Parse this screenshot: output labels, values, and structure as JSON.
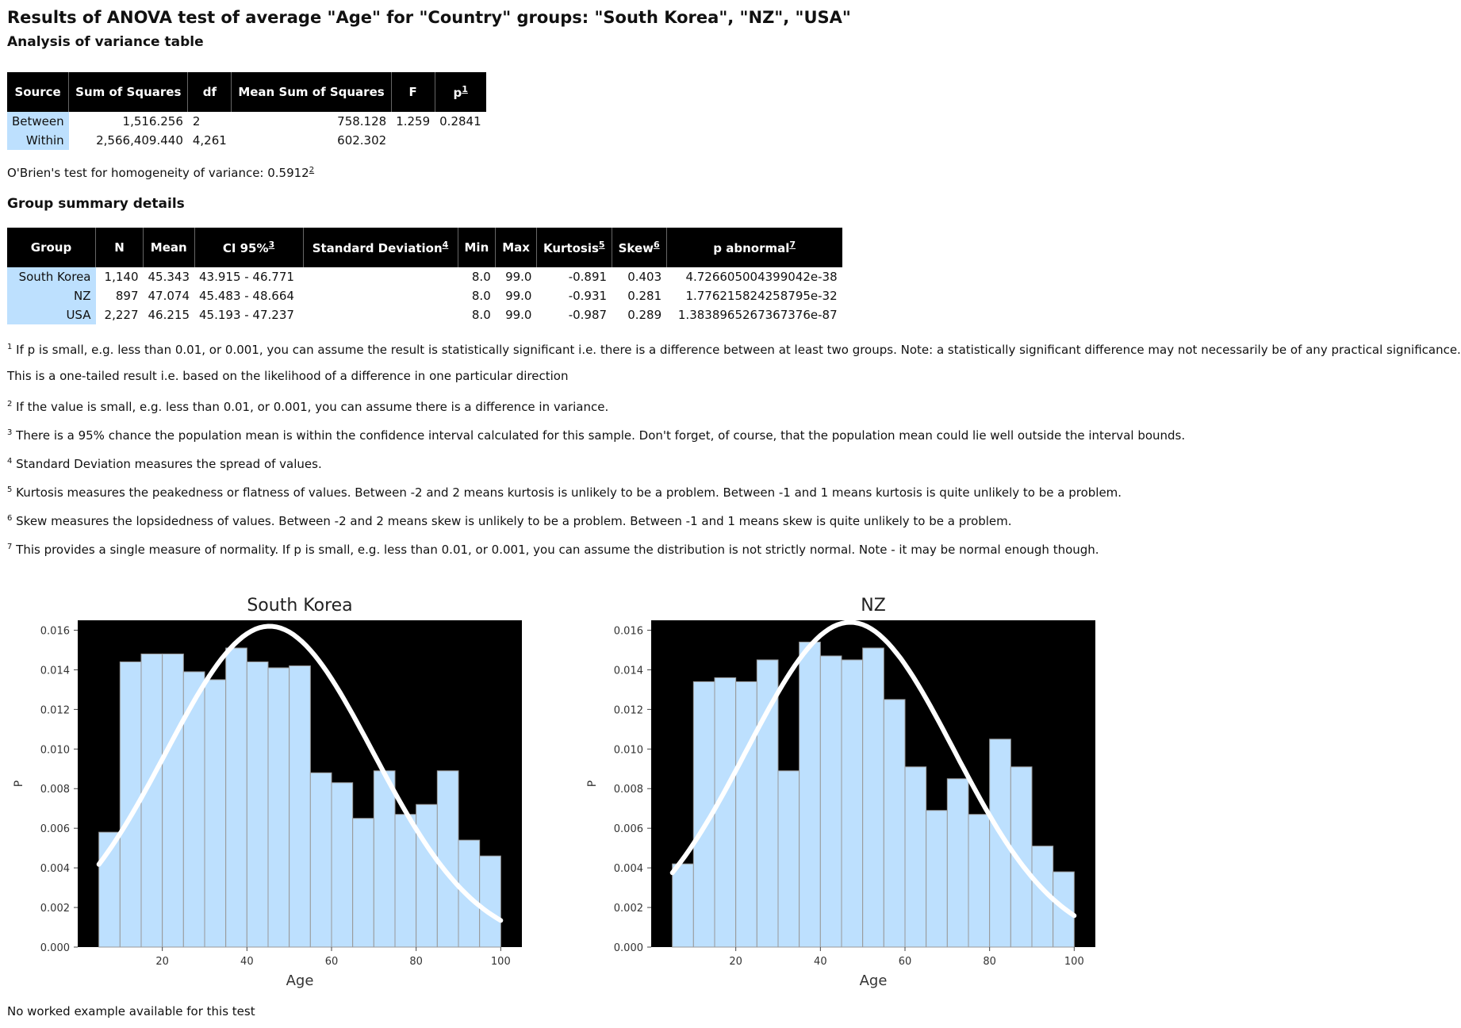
{
  "title": "Results of ANOVA test of average \"Age\" for \"Country\" groups: \"South Korea\", \"NZ\", \"USA\"",
  "anova": {
    "heading": "Analysis of variance table",
    "headers": [
      "Source",
      "Sum of Squares",
      "df",
      "Mean Sum of Squares",
      "F",
      "p"
    ],
    "p_footnote": "1",
    "rows": [
      {
        "source": "Between",
        "ss": "1,516.256",
        "df": "2",
        "ms": "758.128",
        "f": "1.259",
        "p": "0.2841"
      },
      {
        "source": "Within",
        "ss": "2,566,409.440",
        "df": "4,261",
        "ms": "602.302",
        "f": "",
        "p": ""
      }
    ]
  },
  "obrien": {
    "label": "O'Brien's test for homogeneity of variance: 0.5912",
    "footnote": "2"
  },
  "groups": {
    "heading": "Group summary details",
    "headers": {
      "group": "Group",
      "n": "N",
      "mean": "Mean",
      "ci": "CI 95%",
      "sd": "Standard Deviation",
      "min": "Min",
      "max": "Max",
      "kurtosis": "Kurtosis",
      "skew": "Skew",
      "pabn": "p abnormal"
    },
    "header_footnotes": {
      "ci": "3",
      "sd": "4",
      "kurtosis": "5",
      "skew": "6",
      "pabn": "7"
    },
    "rows": [
      {
        "group": "South Korea",
        "n": "1,140",
        "mean": "45.343",
        "ci": "43.915 - 46.771",
        "sd": "",
        "min": "8.0",
        "max": "99.0",
        "kurtosis": "-0.891",
        "skew": "0.403",
        "pabn": "4.726605004399042e-38"
      },
      {
        "group": "NZ",
        "n": "897",
        "mean": "47.074",
        "ci": "45.483 - 48.664",
        "sd": "",
        "min": "8.0",
        "max": "99.0",
        "kurtosis": "-0.931",
        "skew": "0.281",
        "pabn": "1.776215824258795e-32"
      },
      {
        "group": "USA",
        "n": "2,227",
        "mean": "46.215",
        "ci": "45.193 - 47.237",
        "sd": "",
        "min": "8.0",
        "max": "99.0",
        "kurtosis": "-0.987",
        "skew": "0.289",
        "pabn": "1.3838965267367376e-87"
      }
    ]
  },
  "notes": [
    {
      "num": "1",
      "text": "If p is small, e.g. less than 0.01, or 0.001, you can assume the result is statistically significant i.e. there is a difference between at least two groups. Note: a statistically significant difference may not necessarily be of any practical significance."
    },
    {
      "num": "",
      "text": "This is a one-tailed result i.e. based on the likelihood of a difference in one particular direction"
    },
    {
      "num": "2",
      "text": "If the value is small, e.g. less than 0.01, or 0.001, you can assume there is a difference in variance."
    },
    {
      "num": "3",
      "text": "There is a 95% chance the population mean is within the confidence interval calculated for this sample. Don't forget, of course, that the population mean could lie well outside the interval bounds."
    },
    {
      "num": "4",
      "text": "Standard Deviation measures the spread of values."
    },
    {
      "num": "5",
      "text": "Kurtosis measures the peakedness or flatness of values. Between -2 and 2 means kurtosis is unlikely to be a problem. Between -1 and 1 means kurtosis is quite unlikely to be a problem."
    },
    {
      "num": "6",
      "text": "Skew measures the lopsidedness of values. Between -2 and 2 means skew is unlikely to be a problem. Between -1 and 1 means skew is quite unlikely to be a problem."
    },
    {
      "num": "7",
      "text": "This provides a single measure of normality. If p is small, e.g. less than 0.01, or 0.001, you can assume the distribution is not strictly normal. Note - it may be normal enough though."
    }
  ],
  "chart_data": [
    {
      "type": "bar",
      "title": "South Korea",
      "xlabel": "Age",
      "ylabel": "P",
      "xlim": [
        0,
        105
      ],
      "ylim": [
        0,
        0.0165
      ],
      "xticks": [
        20,
        40,
        60,
        80,
        100
      ],
      "yticks": [
        "0.000",
        "0.002",
        "0.004",
        "0.006",
        "0.008",
        "0.010",
        "0.012",
        "0.014",
        "0.016"
      ],
      "bin_edges": [
        5,
        10,
        15,
        20,
        25,
        30,
        35,
        40,
        45,
        50,
        55,
        60,
        65,
        70,
        75,
        80,
        85,
        90,
        95,
        100
      ],
      "values": [
        0.0058,
        0.0144,
        0.0148,
        0.0148,
        0.0139,
        0.0135,
        0.0151,
        0.0144,
        0.0141,
        0.0142,
        0.0088,
        0.0083,
        0.0065,
        0.0089,
        0.0067,
        0.0072,
        0.0089,
        0.0054,
        0.0046
      ],
      "normal_curve": {
        "mean": 45.343,
        "peak": 0.0162,
        "x": [
          5,
          100
        ]
      },
      "colors": {
        "bar": "#bde0fe",
        "edge": "#999999",
        "bg": "#000000",
        "curve": "#ffffff"
      }
    },
    {
      "type": "bar",
      "title": "NZ",
      "xlabel": "Age",
      "ylabel": "P",
      "xlim": [
        0,
        105
      ],
      "ylim": [
        0,
        0.0165
      ],
      "xticks": [
        20,
        40,
        60,
        80,
        100
      ],
      "yticks": [
        "0.000",
        "0.002",
        "0.004",
        "0.006",
        "0.008",
        "0.010",
        "0.012",
        "0.014",
        "0.016"
      ],
      "bin_edges": [
        5,
        10,
        15,
        20,
        25,
        30,
        35,
        40,
        45,
        50,
        55,
        60,
        65,
        70,
        75,
        80,
        85,
        90,
        95,
        100
      ],
      "values": [
        0.0042,
        0.0134,
        0.0136,
        0.0134,
        0.0145,
        0.0089,
        0.0154,
        0.0147,
        0.0145,
        0.0151,
        0.0125,
        0.0091,
        0.0069,
        0.0085,
        0.0067,
        0.0105,
        0.0091,
        0.0051,
        0.0038
      ],
      "normal_curve": {
        "mean": 47.074,
        "peak": 0.0164,
        "x": [
          5,
          100
        ]
      },
      "colors": {
        "bar": "#bde0fe",
        "edge": "#999999",
        "bg": "#000000",
        "curve": "#ffffff"
      }
    }
  ],
  "footer": "No worked example available for this test"
}
